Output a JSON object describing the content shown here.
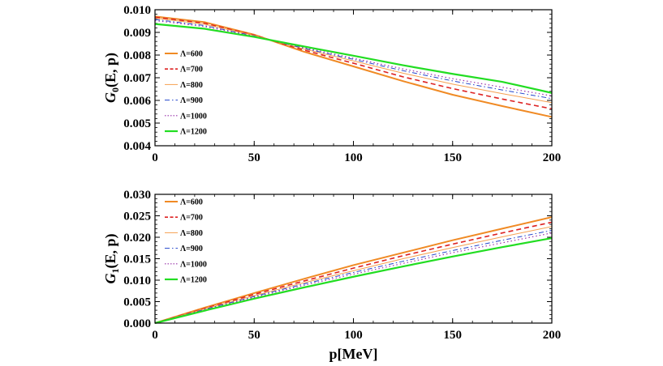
{
  "chart_data": [
    {
      "type": "line",
      "panel": "top",
      "ylabel": "G0(E, p)",
      "ylabel_main": "G",
      "ylabel_sub": "0",
      "ylabel_rest": "(E, p)",
      "xlabel": "",
      "xlim": [
        0,
        200
      ],
      "ylim": [
        0.004,
        0.01
      ],
      "xticks": [
        0,
        50,
        100,
        150,
        200
      ],
      "xtick_labels": [
        "0",
        "50",
        "100",
        "150",
        "200"
      ],
      "yticks": [
        0.004,
        0.005,
        0.006,
        0.007,
        0.008,
        0.009,
        0.01
      ],
      "ytick_labels": [
        "0.004",
        "0.005",
        "0.006",
        "0.007",
        "0.008",
        "0.009",
        "0.010"
      ],
      "legend_position": "left",
      "series": [
        {
          "name": "Λ=600",
          "color": "#F08A24",
          "dash": "solid",
          "width": 2.0,
          "x": [
            0,
            25,
            50,
            75,
            100,
            125,
            150,
            175,
            200
          ],
          "values": [
            0.0097,
            0.00945,
            0.0089,
            0.00815,
            0.0075,
            0.00685,
            0.00625,
            0.00575,
            0.00527
          ]
        },
        {
          "name": "Λ=700",
          "color": "#DD2222",
          "dash": "dashed",
          "width": 1.6,
          "x": [
            0,
            25,
            50,
            75,
            100,
            125,
            150,
            175,
            200
          ],
          "values": [
            0.00967,
            0.0094,
            0.00888,
            0.00822,
            0.00764,
            0.00704,
            0.00652,
            0.00606,
            0.00563
          ]
        },
        {
          "name": "Λ=800",
          "color": "#F5A050",
          "dash": "solid",
          "width": 1.0,
          "x": [
            0,
            25,
            50,
            75,
            100,
            125,
            150,
            175,
            200
          ],
          "values": [
            0.00963,
            0.00936,
            0.00886,
            0.00827,
            0.00774,
            0.0072,
            0.00672,
            0.0063,
            0.0059
          ]
        },
        {
          "name": "Λ=900",
          "color": "#2244CC",
          "dash": "dashdot",
          "width": 1.0,
          "x": [
            0,
            25,
            50,
            75,
            100,
            125,
            150,
            175,
            200
          ],
          "values": [
            0.00957,
            0.0093,
            0.00884,
            0.0083,
            0.00781,
            0.00731,
            0.00686,
            0.00646,
            0.00608
          ]
        },
        {
          "name": "Λ=1000",
          "color": "#9933AA",
          "dash": "dotted",
          "width": 1.2,
          "x": [
            0,
            25,
            50,
            75,
            100,
            125,
            150,
            175,
            200
          ],
          "values": [
            0.00952,
            0.00926,
            0.00883,
            0.00833,
            0.00786,
            0.00739,
            0.00696,
            0.00658,
            0.0062
          ]
        },
        {
          "name": "Λ=1200",
          "color": "#22DD22",
          "dash": "solid",
          "width": 2.2,
          "x": [
            0,
            25,
            50,
            75,
            100,
            125,
            150,
            175,
            200
          ],
          "values": [
            0.00937,
            0.00916,
            0.0088,
            0.00838,
            0.00797,
            0.00755,
            0.00717,
            0.00682,
            0.00633
          ]
        }
      ]
    },
    {
      "type": "line",
      "panel": "bottom",
      "ylabel": "G1(E, p)",
      "ylabel_main": "G",
      "ylabel_sub": "1",
      "ylabel_rest": "(E, p)",
      "xlabel": "p[MeV]",
      "xlim": [
        0,
        200
      ],
      "ylim": [
        0.0,
        0.03
      ],
      "xticks": [
        0,
        50,
        100,
        150,
        200
      ],
      "xtick_labels": [
        "0",
        "50",
        "100",
        "150",
        "200"
      ],
      "yticks": [
        0.0,
        0.005,
        0.01,
        0.015,
        0.02,
        0.025,
        0.03
      ],
      "ytick_labels": [
        "0.000",
        "0.005",
        "0.010",
        "0.015",
        "0.020",
        "0.025",
        "0.030"
      ],
      "legend_position": "top-left",
      "series": [
        {
          "name": "Λ=600",
          "color": "#F08A24",
          "dash": "solid",
          "width": 2.0,
          "x": [
            0,
            25,
            50,
            75,
            100,
            125,
            150,
            175,
            200
          ],
          "values": [
            0.0,
            0.0036,
            0.007,
            0.0103,
            0.0135,
            0.0164,
            0.0193,
            0.022,
            0.0247
          ]
        },
        {
          "name": "Λ=700",
          "color": "#DD2222",
          "dash": "dashed",
          "width": 1.6,
          "x": [
            0,
            25,
            50,
            75,
            100,
            125,
            150,
            175,
            200
          ],
          "values": [
            0.0,
            0.0034,
            0.0067,
            0.0098,
            0.0128,
            0.0157,
            0.0184,
            0.021,
            0.0235
          ]
        },
        {
          "name": "Λ=800",
          "color": "#F5A050",
          "dash": "solid",
          "width": 1.0,
          "x": [
            0,
            25,
            50,
            75,
            100,
            125,
            150,
            175,
            200
          ],
          "values": [
            0.0,
            0.0033,
            0.0064,
            0.0094,
            0.0122,
            0.015,
            0.0176,
            0.0201,
            0.0225
          ]
        },
        {
          "name": "Λ=900",
          "color": "#2244CC",
          "dash": "dashdot",
          "width": 1.0,
          "x": [
            0,
            25,
            50,
            75,
            100,
            125,
            150,
            175,
            200
          ],
          "values": [
            0.0,
            0.0032,
            0.0062,
            0.0091,
            0.0118,
            0.0144,
            0.0169,
            0.0193,
            0.0216
          ]
        },
        {
          "name": "Λ=1000",
          "color": "#9933AA",
          "dash": "dotted",
          "width": 1.2,
          "x": [
            0,
            25,
            50,
            75,
            100,
            125,
            150,
            175,
            200
          ],
          "values": [
            0.0,
            0.0031,
            0.006,
            0.0088,
            0.0114,
            0.0139,
            0.0164,
            0.0187,
            0.021
          ]
        },
        {
          "name": "Λ=1200",
          "color": "#22DD22",
          "dash": "solid",
          "width": 2.2,
          "x": [
            0,
            25,
            50,
            75,
            100,
            125,
            150,
            175,
            200
          ],
          "values": [
            0.0,
            0.0029,
            0.0057,
            0.0083,
            0.0108,
            0.0132,
            0.0155,
            0.0177,
            0.0198
          ]
        }
      ]
    }
  ]
}
